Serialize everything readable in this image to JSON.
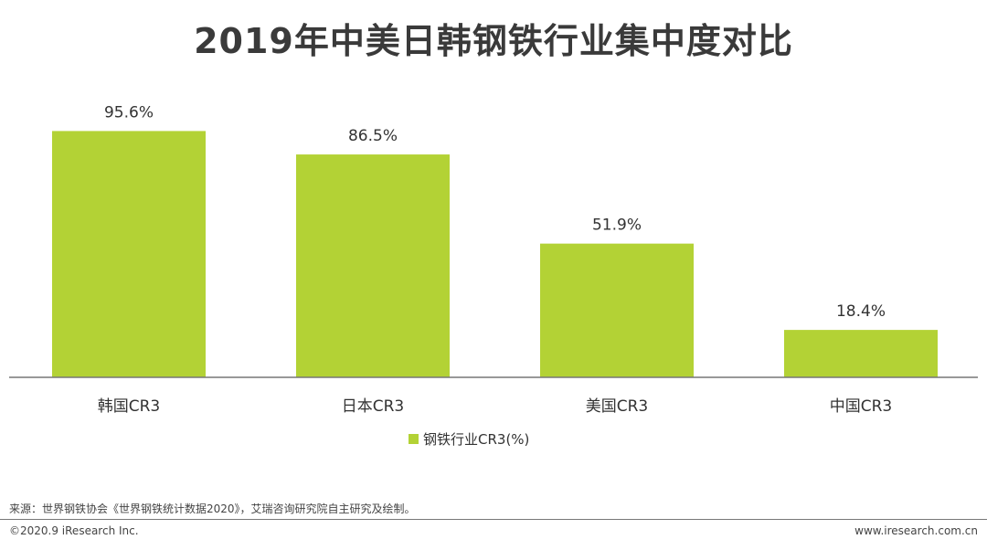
{
  "title": "2019年中美日韩钢铁行业集中度对比",
  "chart_data": {
    "type": "bar",
    "categories": [
      "韩国CR3",
      "日本CR3",
      "美国CR3",
      "中国CR3"
    ],
    "series": [
      {
        "name": "钢铁行业CR3(%)",
        "values": [
          95.6,
          86.5,
          51.9,
          18.4
        ]
      }
    ],
    "data_labels": [
      "95.6%",
      "86.5%",
      "51.9%",
      "18.4%"
    ],
    "ylim": [
      0,
      100
    ],
    "grid": false,
    "legend_position": "bottom",
    "bar_color": "#b3d235"
  },
  "legend_label": "钢铁行业CR3(%)",
  "source": "来源：世界钢铁协会《世界钢铁统计数据2020》，艾瑞咨询研究院自主研究及绘制。",
  "copyright": "©2020.9 iResearch Inc.",
  "website": "www.iresearch.com.cn"
}
